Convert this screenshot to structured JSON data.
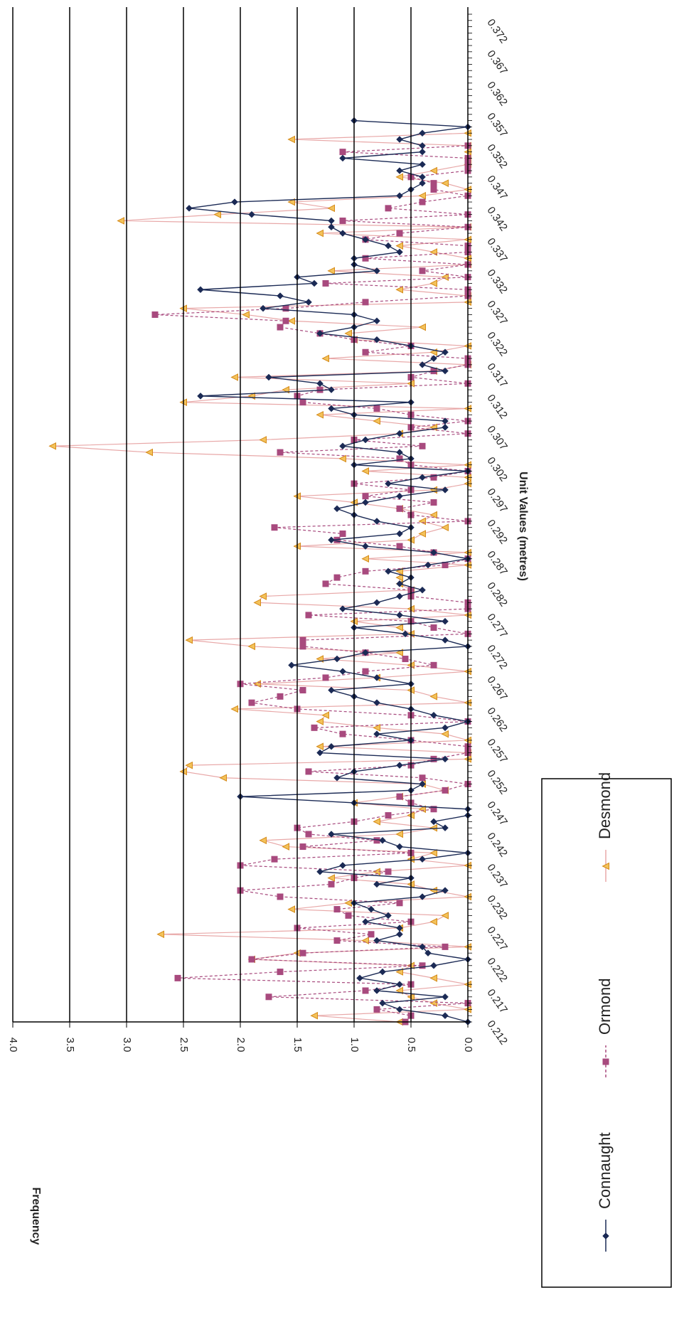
{
  "chart_data": {
    "type": "line",
    "ylabel": "Frequency",
    "xlabel": "Unit Values (metres)",
    "ylim": [
      0,
      4.0
    ],
    "yticks": [
      "0.0",
      "0.5",
      "1.0",
      "1.5",
      "2.0",
      "2.5",
      "3.0",
      "3.5",
      "4.0"
    ],
    "xlim": [
      0.212,
      0.373
    ],
    "xticks": [
      "0.212",
      "0.217",
      "0.222",
      "0.227",
      "0.232",
      "0.237",
      "0.242",
      "0.247",
      "0.252",
      "0.257",
      "0.262",
      "0.267",
      "0.272",
      "0.277",
      "0.282",
      "0.287",
      "0.292",
      "0.297",
      "0.302",
      "0.307",
      "0.312",
      "0.317",
      "0.322",
      "0.327",
      "0.332",
      "0.337",
      "0.342",
      "0.347",
      "0.352",
      "0.357",
      "0.362",
      "0.367",
      "0.372"
    ],
    "grid": "horizontal",
    "legend_position": "bottom",
    "x_start": 0.212,
    "x_step": 0.001,
    "series": [
      {
        "name": "Connaught",
        "color": "#1b2a55",
        "marker": "diamond",
        "dash": "none",
        "values": [
          0.0,
          0.2,
          0.6,
          0.75,
          0.2,
          0.8,
          0.6,
          0.95,
          0.75,
          0.3,
          0.0,
          0.35,
          0.4,
          0.8,
          0.6,
          0.6,
          0.9,
          0.7,
          0.85,
          1.0,
          0.4,
          0.2,
          0.8,
          0.5,
          1.3,
          1.1,
          0.4,
          0.0,
          0.6,
          0.75,
          1.2,
          0.2,
          0.3,
          0.0,
          0.0,
          1.0,
          2.0,
          0.5,
          0.4,
          1.15,
          1.0,
          0.6,
          0.2,
          1.3,
          1.2,
          0.5,
          0.8,
          0.2,
          0.0,
          0.3,
          0.5,
          0.8,
          1.0,
          1.2,
          0.5,
          0.8,
          1.1,
          1.55,
          1.15,
          0.9,
          0.0,
          0.2,
          0.55,
          1.0,
          0.2,
          0.6,
          1.1,
          0.8,
          0.6,
          0.4,
          0.6,
          0.5,
          0.7,
          0.35,
          0.0,
          0.3,
          0.9,
          1.2,
          0.6,
          0.5,
          0.8,
          1.0,
          1.15,
          0.9,
          0.6,
          0.2,
          0.7,
          0.4,
          0.0,
          1.0,
          0.5,
          0.6,
          1.1,
          0.9,
          0.6,
          0.2,
          0.2,
          1.0,
          1.2,
          0.5,
          2.35,
          1.2,
          1.3,
          1.75,
          0.2,
          0.4,
          0.3,
          0.2,
          0.5,
          0.8,
          1.3,
          1.0,
          0.8,
          1.0,
          1.8,
          1.4,
          1.65,
          2.35,
          1.35,
          1.5,
          0.8,
          1.0,
          1.0,
          0.6,
          0.7,
          0.9,
          1.1,
          1.2,
          1.2,
          1.9,
          2.45,
          2.05,
          0.6,
          0.5,
          0.4,
          0.4,
          0.6,
          0.4,
          1.1,
          0.4,
          0.4,
          0.6,
          0.4,
          0.0,
          1.0
        ]
      },
      {
        "name": "Ormond",
        "color": "#a84a7e",
        "marker": "square",
        "dash": "4,3",
        "values": [
          0.55,
          0.5,
          0.8,
          0.0,
          1.75,
          0.9,
          0.5,
          2.55,
          1.65,
          0.4,
          1.9,
          1.45,
          0.2,
          1.15,
          0.85,
          1.5,
          0.5,
          1.05,
          1.15,
          0.6,
          1.65,
          2.0,
          1.2,
          1.0,
          0.7,
          2.0,
          1.7,
          0.5,
          1.45,
          0.8,
          1.4,
          1.5,
          1.0,
          0.7,
          0.3,
          0.5,
          0.6,
          0.2,
          0.0,
          0.4,
          1.4,
          0.5,
          0.3,
          0.0,
          0.0,
          0.5,
          1.1,
          1.35,
          0.0,
          0.5,
          1.5,
          1.9,
          1.65,
          1.45,
          2.0,
          1.25,
          0.9,
          0.3,
          0.55,
          0.9,
          1.45,
          1.45,
          0.0,
          0.3,
          0.5,
          1.4,
          0.0,
          0.0,
          0.5,
          0.5,
          1.25,
          1.15,
          0.9,
          0.2,
          0.0,
          0.3,
          0.6,
          1.15,
          1.1,
          1.7,
          0.0,
          0.5,
          0.6,
          0.3,
          0.9,
          0.5,
          1.0,
          0.3,
          0.0,
          0.5,
          0.6,
          1.65,
          0.4,
          1.0,
          0.0,
          0.5,
          0.0,
          0.5,
          0.8,
          1.45,
          1.5,
          1.3,
          0.0,
          0.5,
          0.3,
          0.0,
          0.0,
          0.9,
          0.5,
          1.0,
          1.3,
          1.65,
          1.6,
          2.75,
          1.6,
          0.9,
          0.0,
          0.0,
          1.25,
          0.0,
          0.4,
          0.0,
          0.9,
          0.0,
          0.0,
          0.9,
          0.6,
          0.0,
          1.1,
          0.0,
          0.7,
          0.4,
          0.0,
          0.3,
          0.3,
          0.5,
          0.0,
          0.0,
          0.0,
          1.1,
          0.0
        ]
      },
      {
        "name": "Desmond",
        "color": "#e0a030",
        "marker": "triangle",
        "dash": "none",
        "values": [
          0.6,
          1.35,
          0.0,
          0.3,
          0.5,
          0.6,
          0.0,
          0.3,
          0.6,
          0.5,
          1.9,
          1.5,
          0.0,
          0.9,
          2.7,
          0.6,
          0.3,
          0.2,
          1.55,
          1.05,
          0.0,
          0.3,
          0.5,
          1.2,
          0.8,
          0.0,
          0.5,
          0.3,
          1.6,
          1.8,
          0.6,
          0.3,
          0.8,
          0.5,
          0.4,
          1.0,
          0.6,
          0.2,
          0.4,
          2.15,
          2.5,
          2.45,
          0.0,
          0.0,
          1.3,
          0.0,
          0.2,
          0.8,
          1.3,
          1.25,
          2.05,
          0.0,
          0.3,
          0.5,
          1.85,
          0.8,
          0.0,
          0.5,
          1.3,
          0.6,
          1.9,
          2.45,
          0.5,
          0.6,
          1.0,
          0.0,
          0.5,
          1.85,
          1.8,
          0.5,
          0.6,
          0.6,
          0.6,
          0.0,
          0.9,
          0.0,
          1.5,
          0.5,
          0.4,
          0.2,
          0.4,
          0.3,
          0.6,
          1.0,
          1.5,
          0.3,
          0.0,
          0.0,
          0.9,
          0.0,
          1.1,
          2.8,
          3.65,
          1.8,
          0.6,
          0.3,
          0.8,
          1.3,
          0.0,
          2.5,
          1.9,
          1.6,
          0.5,
          2.05,
          0.3,
          0.0,
          1.25,
          0.3,
          0.0,
          1.0,
          1.05,
          0.4,
          1.55,
          1.95,
          2.5,
          0.0,
          0.0,
          0.6,
          0.3,
          0.2,
          1.2,
          0.0,
          0.0,
          0.3,
          0.6,
          0.0,
          1.3,
          0.0,
          3.05,
          2.2,
          1.2,
          1.55,
          0.4,
          0.0,
          0.2,
          0.6,
          0.3,
          0.0,
          0.0,
          0.0,
          0.0,
          1.55,
          0.0
        ]
      }
    ]
  }
}
